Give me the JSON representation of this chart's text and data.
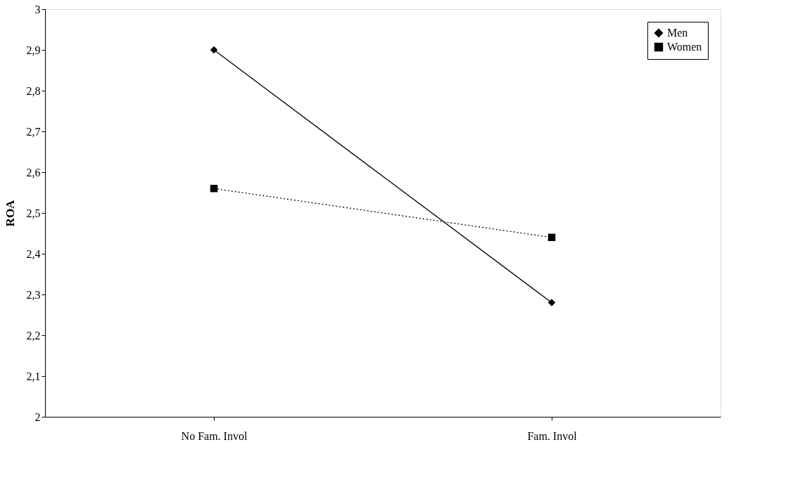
{
  "chart_data": {
    "type": "line",
    "ylabel": "ROA",
    "categories": [
      "No Fam. Invol",
      "Fam. Invol"
    ],
    "series": [
      {
        "name": "Men",
        "color": "#000000",
        "values": [
          2.9,
          2.28
        ],
        "marker": "diamond",
        "line_style": "solid"
      },
      {
        "name": "Women",
        "color": "#000000",
        "values": [
          2.56,
          2.44
        ],
        "marker": "square",
        "line_style": "dotted"
      }
    ],
    "ylim": [
      2,
      3
    ],
    "yticks": [
      2,
      {
        "value": 2.1,
        "label": "2,1"
      },
      {
        "value": 2.2,
        "label": "2,2"
      },
      {
        "value": 2.3,
        "label": "2,3"
      },
      {
        "value": 2.4,
        "label": "2,4"
      },
      {
        "value": 2.5,
        "label": "2,5"
      },
      {
        "value": 2.6,
        "label": "2,6"
      },
      {
        "value": 2.7,
        "label": "2,7"
      },
      {
        "value": 2.8,
        "label": "2,8"
      },
      {
        "value": 2.9,
        "label": "2,9"
      },
      3
    ],
    "grid": false,
    "legend": "top right"
  }
}
